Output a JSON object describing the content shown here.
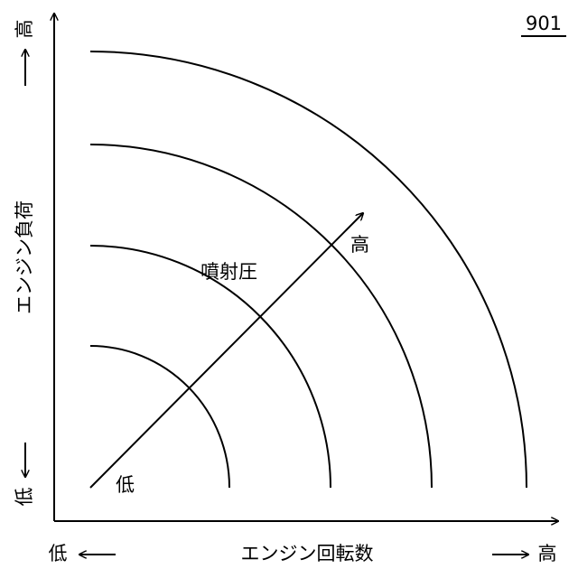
{
  "figure_number": "901",
  "y_axis": {
    "label": "エンジン負荷",
    "low": "低",
    "high": "高"
  },
  "x_axis": {
    "label": "エンジン回転数",
    "low": "低",
    "high": "高"
  },
  "arrow": {
    "label": "噴射圧",
    "low": "低",
    "high": "高"
  }
}
